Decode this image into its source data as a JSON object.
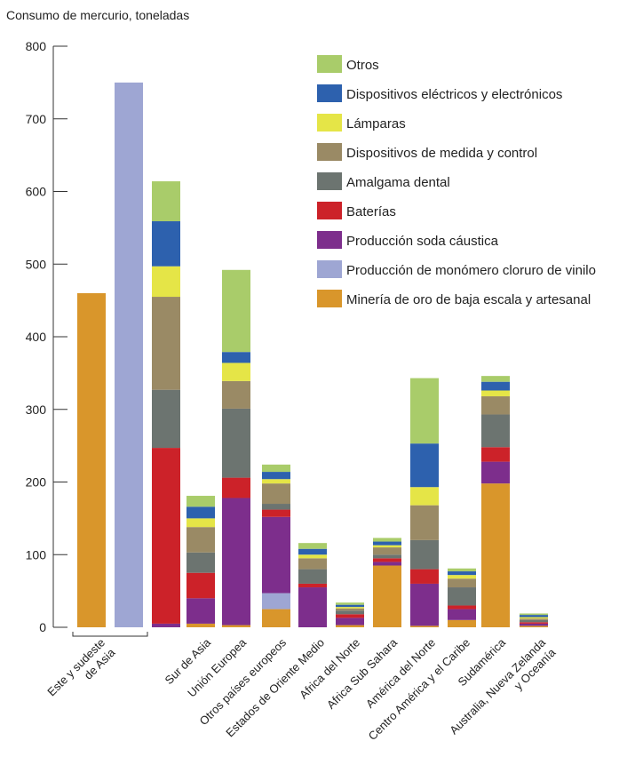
{
  "chart_data": {
    "type": "bar",
    "stacked": true,
    "ylabel": "Consumo de mercurio, toneladas",
    "ylim": [
      0,
      800
    ],
    "yticks": [
      0,
      100,
      200,
      300,
      400,
      500,
      600,
      700,
      800
    ],
    "grid": false,
    "legend_position": "top-right",
    "categories": [
      "Este y sudeste de Asia (1)",
      "Este y sudeste de Asia (2)",
      "Este y sudeste de Asia (3)",
      "Sur de Asia",
      "Unión Europea",
      "Otros países europeos",
      "Estados de Oriente Medio",
      "Africa del Norte",
      "Africa Sub Sahara",
      "América del Norte",
      "Centro América y el Caribe",
      "Sudamérica",
      "Australia, Nueva Zelanda y Oceanía"
    ],
    "category_labels": [
      {
        "lines": [
          "Este y sudeste",
          "de Asia"
        ],
        "group": true
      },
      {
        "lines": [
          "Sur de Asia"
        ]
      },
      {
        "lines": [
          "Unión Europea"
        ]
      },
      {
        "lines": [
          "Otros países europeos"
        ]
      },
      {
        "lines": [
          "Estados de Oriente Medio"
        ]
      },
      {
        "lines": [
          "Africa del Norte"
        ]
      },
      {
        "lines": [
          "Africa Sub Sahara"
        ]
      },
      {
        "lines": [
          "América del Norte"
        ]
      },
      {
        "lines": [
          "Centro América y el Caribe"
        ]
      },
      {
        "lines": [
          "Sudamérica"
        ]
      },
      {
        "lines": [
          "Australia, Nueva Zelanda",
          "y Oceanía"
        ]
      }
    ],
    "series": [
      {
        "name": "Minería de oro de baja escala y artesanal",
        "color": "#d9962b",
        "values": [
          460,
          0,
          0,
          5,
          3,
          25,
          0,
          3,
          85,
          2,
          10,
          198,
          2
        ]
      },
      {
        "name": "Producción de monómero cloruro de vinilo",
        "color": "#9ea6d3",
        "values": [
          0,
          750,
          0,
          0,
          0,
          22,
          0,
          0,
          0,
          0,
          0,
          0,
          0
        ]
      },
      {
        "name": "Producción soda cáustica",
        "color": "#7d2e8c",
        "values": [
          0,
          0,
          5,
          35,
          175,
          105,
          55,
          10,
          5,
          58,
          15,
          30,
          3
        ]
      },
      {
        "name": "Baterías",
        "color": "#cc2229",
        "values": [
          0,
          0,
          242,
          35,
          28,
          10,
          5,
          5,
          5,
          20,
          5,
          20,
          2
        ]
      },
      {
        "name": "Amalgama dental",
        "color": "#6c7470",
        "values": [
          0,
          0,
          80,
          28,
          95,
          8,
          20,
          5,
          5,
          40,
          25,
          45,
          3
        ]
      },
      {
        "name": "Dispositivos de medida y control",
        "color": "#9a8a65",
        "values": [
          0,
          0,
          128,
          35,
          38,
          28,
          15,
          3,
          10,
          48,
          12,
          25,
          2
        ]
      },
      {
        "name": "Lámparas",
        "color": "#e5e547",
        "values": [
          0,
          0,
          42,
          12,
          25,
          6,
          5,
          2,
          3,
          25,
          5,
          8,
          2
        ]
      },
      {
        "name": "Dispositivos eléctricos y electrónicos",
        "color": "#2d61ae",
        "values": [
          0,
          0,
          62,
          16,
          15,
          10,
          8,
          3,
          5,
          60,
          5,
          12,
          3
        ]
      },
      {
        "name": "Otros",
        "color": "#a9cc6a",
        "values": [
          0,
          0,
          55,
          15,
          113,
          10,
          8,
          3,
          5,
          90,
          4,
          8,
          2
        ]
      }
    ],
    "legend_order": [
      "Otros",
      "Dispositivos eléctricos y electrónicos",
      "Lámparas",
      "Dispositivos de medida y control",
      "Amalgama dental",
      "Baterías",
      "Producción soda cáustica",
      "Producción de monómero cloruro de vinilo",
      "Minería de oro de baja escala y artesanal"
    ]
  }
}
